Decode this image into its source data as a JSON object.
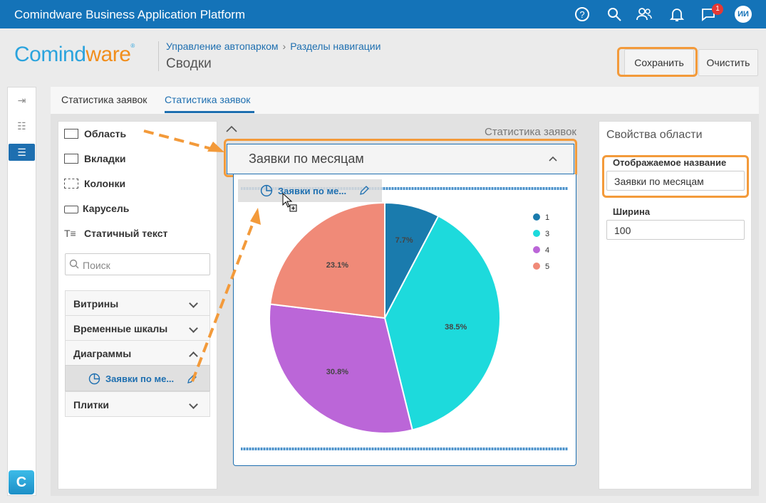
{
  "topbar": {
    "title": "Comindware Business Application Platform",
    "notif_count": "1",
    "avatar_initials": "ИИ"
  },
  "logo": {
    "part1": "Comind",
    "part2": "ware",
    "reg": "®"
  },
  "breadcrumb": {
    "item1": "Управление автопарком",
    "item2": "Разделы навигации"
  },
  "page_title": "Сводки",
  "header_buttons": {
    "save": "Сохранить",
    "clear": "Очистить"
  },
  "tabs": [
    {
      "label": "Статистика заявок"
    },
    {
      "label": "Статистика заявок"
    }
  ],
  "elements": {
    "items": [
      {
        "label": "Область"
      },
      {
        "label": "Вкладки"
      },
      {
        "label": "Колонки"
      },
      {
        "label": "Карусель"
      },
      {
        "label": "Статичный текст"
      }
    ],
    "search_placeholder": "Поиск",
    "groups": [
      {
        "label": "Витрины"
      },
      {
        "label": "Временные шкалы"
      },
      {
        "label": "Диаграммы"
      },
      {
        "label": "Плитки"
      }
    ],
    "selected_item": "Заявки по ме..."
  },
  "canvas": {
    "form_title": "Статистика заявок",
    "area_title": "Заявки по месяцам",
    "ghost_label": "Заявки по ме..."
  },
  "properties": {
    "title": "Свойства области",
    "display_name_label": "Отображаемое название",
    "display_name_value": "Заявки по месяцам",
    "width_label": "Ширина",
    "width_value": "100"
  },
  "colors": {
    "topbar": "#1473b8",
    "accent": "#1e6fb0",
    "highlight": "#f39a3a"
  },
  "chart_data": {
    "type": "pie",
    "slices": [
      {
        "name": "1",
        "value": 7.7,
        "label": "7.7%",
        "color": "#1a7bad"
      },
      {
        "name": "3",
        "value": 38.5,
        "label": "38.5%",
        "color": "#1ddadc"
      },
      {
        "name": "4",
        "value": 30.8,
        "label": "30.8%",
        "color": "#bb66d8"
      },
      {
        "name": "5",
        "value": 23.1,
        "label": "23.1%",
        "color": "#f08a78"
      }
    ],
    "legend_position": "top-right"
  }
}
